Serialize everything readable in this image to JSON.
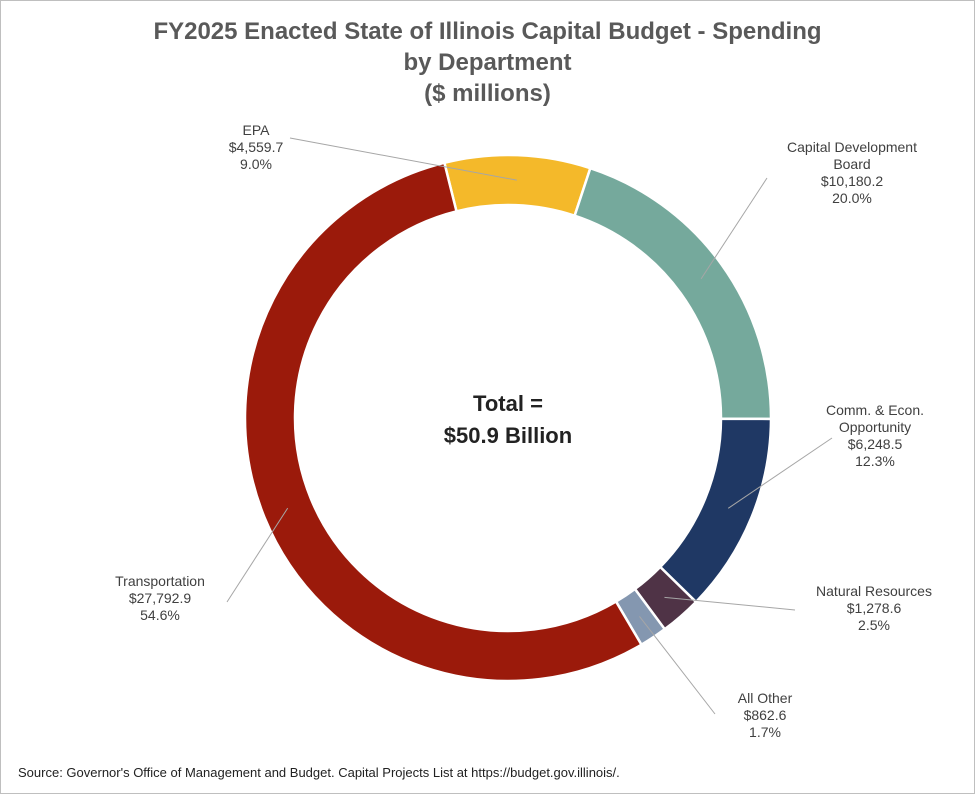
{
  "chart_data": {
    "type": "pie",
    "donut": true,
    "title_lines": [
      "FY2025 Enacted State of Illinois Capital Budget - Spending",
      "by Department",
      "($ millions)"
    ],
    "center_text": [
      "Total =",
      "$50.9 Billion"
    ],
    "slices": [
      {
        "key": "epa",
        "label_lines": [
          "EPA"
        ],
        "value": 4559.7,
        "value_text": "$4,559.7",
        "percent_text": "9.0%",
        "color": "#F4B92A"
      },
      {
        "key": "cdb",
        "label_lines": [
          "Capital Development",
          "Board"
        ],
        "value": 10180.2,
        "value_text": "$10,180.2",
        "percent_text": "20.0%",
        "color": "#75A99C"
      },
      {
        "key": "dceo",
        "label_lines": [
          "Comm. & Econ.",
          "Opportunity"
        ],
        "value": 6248.5,
        "value_text": "$6,248.5",
        "percent_text": "12.3%",
        "color": "#1F3864"
      },
      {
        "key": "dnr",
        "label_lines": [
          "Natural Resources"
        ],
        "value": 1278.6,
        "value_text": "$1,278.6",
        "percent_text": "2.5%",
        "color": "#4F3346"
      },
      {
        "key": "other",
        "label_lines": [
          "All Other"
        ],
        "value": 862.6,
        "value_text": "$862.6",
        "percent_text": "1.7%",
        "color": "#8497B0"
      },
      {
        "key": "idot",
        "label_lines": [
          "Transportation"
        ],
        "value": 27792.9,
        "value_text": "$27,792.9",
        "percent_text": "54.6%",
        "color": "#9B1A0B"
      }
    ]
  },
  "source": "Source: Governor's Office of Management and Budget. Capital Projects List at https://budget.gov.illinois/."
}
